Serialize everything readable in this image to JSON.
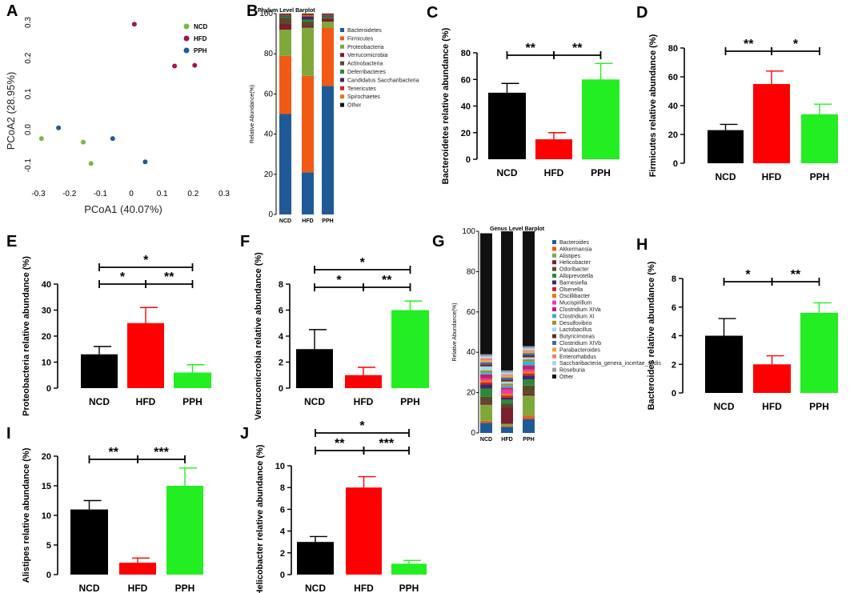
{
  "chart_data": [
    {
      "panel": "A",
      "type": "scatter",
      "xlabel": "PCoA1 (40.07%)",
      "ylabel": "PCoA2 (28.95%)",
      "xlim": [
        -0.3,
        0.3
      ],
      "ylim": [
        -0.15,
        0.3
      ],
      "xticks": [
        "-0.3",
        "-0.2",
        "-0.1",
        "0",
        "0.1",
        "0.2",
        "0.3"
      ],
      "yticks": [
        "0.3",
        "0.2",
        "0.1",
        "0.0",
        "-0.1"
      ],
      "series": [
        {
          "name": "NCD",
          "color": "#7ab648",
          "points": [
            [
              -0.29,
              -0.025
            ],
            [
              -0.155,
              -0.035
            ],
            [
              -0.13,
              -0.095
            ]
          ]
        },
        {
          "name": "HFD",
          "color": "#9b1b3a",
          "points": [
            [
              0.01,
              0.295
            ],
            [
              0.14,
              0.178
            ],
            [
              0.205,
              0.18
            ]
          ]
        },
        {
          "name": "PPH",
          "color": "#1f5a96",
          "points": [
            [
              -0.235,
              0.005
            ],
            [
              -0.06,
              -0.025
            ],
            [
              0.045,
              -0.09
            ]
          ]
        }
      ]
    },
    {
      "panel": "B",
      "type": "stacked-bar",
      "title": "Phylum Level Barplot",
      "ylabel": "Relative Abundance(%)",
      "ylim": [
        0,
        100
      ],
      "yticks": [
        "0",
        "20",
        "40",
        "60",
        "80",
        "100"
      ],
      "categories": [
        "NCD",
        "HFD",
        "PPH"
      ],
      "series": [
        {
          "name": "Bacteroidetes",
          "color": "#1f5a96",
          "values": [
            50,
            21,
            64
          ]
        },
        {
          "name": "Firmicutes",
          "color": "#f05a14",
          "values": [
            29,
            48,
            29
          ]
        },
        {
          "name": "Proteobacteria",
          "color": "#7fa83a",
          "values": [
            13,
            24,
            3
          ]
        },
        {
          "name": "Verrucomicrobia",
          "color": "#7a1f2e",
          "values": [
            3,
            1,
            1.5
          ]
        },
        {
          "name": "Actinobacteria",
          "color": "#5a4a2a",
          "values": [
            3,
            2,
            0.5
          ]
        },
        {
          "name": "Deferribacteres",
          "color": "#2a8a3a",
          "values": [
            0.5,
            1,
            0.5
          ]
        },
        {
          "name": "Candidatus Saccharibacteria",
          "color": "#3a2a6a",
          "values": [
            0.5,
            1.5,
            0.5
          ]
        },
        {
          "name": "Tenericutes",
          "color": "#d42020",
          "values": [
            0.3,
            0.5,
            0.3
          ]
        },
        {
          "name": "Spirochaetes",
          "color": "#e07a10",
          "values": [
            0.2,
            0.5,
            0.2
          ]
        },
        {
          "name": "Other",
          "color": "#111111",
          "values": [
            0.5,
            0.5,
            0.5
          ]
        }
      ]
    },
    {
      "panel": "C",
      "type": "bar",
      "ylabel": "Bacteroidetes relative abundance (%)",
      "categories": [
        "NCD",
        "HFD",
        "PPH"
      ],
      "values": [
        50,
        15,
        60
      ],
      "errors": [
        7,
        5,
        12
      ],
      "ylim": [
        0,
        80
      ],
      "yticks": [
        "0",
        "20",
        "40",
        "60",
        "80"
      ],
      "annotations": [
        {
          "from": 0,
          "to": 1,
          "level": 0,
          "text": "**"
        },
        {
          "from": 1,
          "to": 2,
          "level": 0,
          "text": "**"
        }
      ]
    },
    {
      "panel": "D",
      "type": "bar",
      "ylabel": "Firmicutes relative abundance (%)",
      "categories": [
        "NCD",
        "HFD",
        "PPH"
      ],
      "values": [
        23,
        55,
        34
      ],
      "errors": [
        4,
        9,
        7
      ],
      "ylim": [
        0,
        80
      ],
      "yticks": [
        "0",
        "20",
        "40",
        "60",
        "80"
      ],
      "annotations": [
        {
          "from": 0,
          "to": 1,
          "level": 0,
          "text": "**"
        },
        {
          "from": 1,
          "to": 2,
          "level": 0,
          "text": "*"
        }
      ]
    },
    {
      "panel": "E",
      "type": "bar",
      "ylabel": "Proteobacteria relative abundance (%)",
      "categories": [
        "NCD",
        "HFD",
        "PPH"
      ],
      "values": [
        13,
        25,
        6
      ],
      "errors": [
        3,
        6,
        3
      ],
      "ylim": [
        0,
        40
      ],
      "yticks": [
        "0",
        "10",
        "20",
        "30",
        "40"
      ],
      "annotations": [
        {
          "from": 0,
          "to": 2,
          "level": 1,
          "text": "*"
        },
        {
          "from": 0,
          "to": 1,
          "level": 0,
          "text": "*"
        },
        {
          "from": 1,
          "to": 2,
          "level": 0,
          "text": "**"
        }
      ]
    },
    {
      "panel": "F",
      "type": "bar",
      "ylabel": "Verrucomicrobia relative abundance (%)",
      "categories": [
        "NCD",
        "HFD",
        "PPH"
      ],
      "values": [
        3,
        1,
        6
      ],
      "errors": [
        1.5,
        0.6,
        0.7
      ],
      "ylim": [
        0,
        8
      ],
      "yticks": [
        "0",
        "2",
        "4",
        "6",
        "8"
      ],
      "annotations": [
        {
          "from": 0,
          "to": 2,
          "level": 1,
          "text": "*"
        },
        {
          "from": 0,
          "to": 1,
          "level": 0,
          "text": "*"
        },
        {
          "from": 1,
          "to": 2,
          "level": 0,
          "text": "**"
        }
      ]
    },
    {
      "panel": "G",
      "type": "stacked-bar",
      "title": "Genus Level Barplot",
      "ylabel": "Relative Abundance(%)",
      "ylim": [
        0,
        100
      ],
      "yticks": [
        "0",
        "20",
        "40",
        "60",
        "80",
        "100"
      ],
      "categories": [
        "NCD",
        "HFD",
        "PPH"
      ],
      "series": [
        {
          "name": "Bacteroides",
          "color": "#1f5a96",
          "values": [
            5,
            3,
            7
          ]
        },
        {
          "name": "Akkermansia",
          "color": "#f05a14",
          "values": [
            1,
            0.5,
            1.5
          ]
        },
        {
          "name": "Alistipes",
          "color": "#7fa83a",
          "values": [
            8,
            1,
            10
          ]
        },
        {
          "name": "Helicobacter",
          "color": "#7a1f2e",
          "values": [
            1,
            8,
            1
          ]
        },
        {
          "name": "Odoribacter",
          "color": "#5a4a2a",
          "values": [
            3,
            2,
            4
          ]
        },
        {
          "name": "Alloprevotella",
          "color": "#2a8a3a",
          "values": [
            4,
            2,
            3
          ]
        },
        {
          "name": "Barnesiella",
          "color": "#3a2a6a",
          "values": [
            2,
            1,
            2
          ]
        },
        {
          "name": "Olsenella",
          "color": "#d42020",
          "values": [
            1,
            1,
            1
          ]
        },
        {
          "name": "Oscillibacter",
          "color": "#e07a10",
          "values": [
            1,
            1,
            1
          ]
        },
        {
          "name": "Mucispirillum",
          "color": "#e83aa8",
          "values": [
            1,
            2,
            1
          ]
        },
        {
          "name": "Clostridium XIVa",
          "color": "#c02070",
          "values": [
            2,
            1,
            2
          ]
        },
        {
          "name": "Clostridium XI",
          "color": "#3ab0d8",
          "values": [
            1,
            1,
            2
          ]
        },
        {
          "name": "Desulfovibrio",
          "color": "#b08a20",
          "values": [
            1,
            1,
            1
          ]
        },
        {
          "name": "Lactobacillus",
          "color": "#a0d8f0",
          "values": [
            2,
            1,
            1
          ]
        },
        {
          "name": "Butyricimonas",
          "color": "#6a2a18",
          "values": [
            1,
            1,
            1
          ]
        },
        {
          "name": "Clostridium XIVb",
          "color": "#3a6ab0",
          "values": [
            1,
            1,
            1
          ]
        },
        {
          "name": "Parabacteroides",
          "color": "#f0a040",
          "values": [
            1,
            1,
            1
          ]
        },
        {
          "name": "Enterorhabdus",
          "color": "#f08070",
          "values": [
            1,
            0.5,
            0.5
          ]
        },
        {
          "name": "Saccharibacteria_genera_incertae_sedis",
          "color": "#b0d0e8",
          "values": [
            1,
            1,
            1
          ]
        },
        {
          "name": "Roseburia",
          "color": "#9a9ab0",
          "values": [
            1,
            1,
            1
          ]
        },
        {
          "name": "Other",
          "color": "#111111",
          "values": [
            60,
            69,
            57
          ]
        }
      ]
    },
    {
      "panel": "H",
      "type": "bar",
      "ylabel": "Bacteroides relative abundance (%)",
      "categories": [
        "NCD",
        "HFD",
        "PPH"
      ],
      "values": [
        4,
        2,
        5.6
      ],
      "errors": [
        1.2,
        0.6,
        0.7
      ],
      "ylim": [
        0,
        8
      ],
      "yticks": [
        "0",
        "2",
        "4",
        "6",
        "8"
      ],
      "annotations": [
        {
          "from": 0,
          "to": 1,
          "level": 0,
          "text": "*"
        },
        {
          "from": 1,
          "to": 2,
          "level": 0,
          "text": "**"
        }
      ]
    },
    {
      "panel": "I",
      "type": "bar",
      "ylabel": "Alistipes relative abundance (%)",
      "categories": [
        "NCD",
        "HFD",
        "PPH"
      ],
      "values": [
        11,
        2,
        15
      ],
      "errors": [
        1.5,
        0.8,
        3
      ],
      "ylim": [
        0,
        20
      ],
      "yticks": [
        "0",
        "5",
        "10",
        "15",
        "20"
      ],
      "annotations": [
        {
          "from": 0,
          "to": 1,
          "level": 0,
          "text": "**"
        },
        {
          "from": 1,
          "to": 2,
          "level": 0,
          "text": "***"
        }
      ]
    },
    {
      "panel": "J",
      "type": "bar",
      "ylabel": "Helicobacter relative abundance (%)",
      "categories": [
        "NCD",
        "HFD",
        "PPH"
      ],
      "values": [
        3,
        8,
        1
      ],
      "errors": [
        0.5,
        1,
        0.3
      ],
      "ylim": [
        0,
        10
      ],
      "yticks": [
        "0",
        "2",
        "4",
        "6",
        "8",
        "10"
      ],
      "annotations": [
        {
          "from": 0,
          "to": 2,
          "level": 1,
          "text": "*"
        },
        {
          "from": 0,
          "to": 1,
          "level": 0,
          "text": "**"
        },
        {
          "from": 1,
          "to": 2,
          "level": 0,
          "text": "***"
        }
      ]
    }
  ],
  "bar_colors": [
    "#000000",
    "#ff0000",
    "#22ee22"
  ]
}
